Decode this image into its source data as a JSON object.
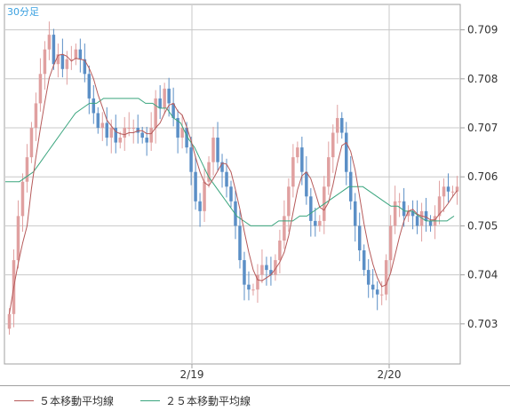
{
  "chart_data": {
    "type": "candlestick",
    "timeframe_label": "30分足",
    "x_tick_labels": [
      "2/19",
      "2/20"
    ],
    "ylim": [
      0.7022,
      0.7095
    ],
    "y_ticks": [
      0.703,
      0.704,
      0.705,
      0.706,
      0.707,
      0.708,
      0.709
    ],
    "y_tick_labels": [
      "0.703",
      "0.704",
      "0.705",
      "0.706",
      "0.707",
      "0.708",
      "0.709"
    ],
    "grid": true,
    "colors": {
      "up": "#e0a0a0",
      "down": "#5b8fc6",
      "ma5": "#b65a5a",
      "ma25": "#3aa57e",
      "grid": "#c8c8c8",
      "frame": "#a0a0a0"
    },
    "closes": [
      0.7032,
      0.7043,
      0.7052,
      0.7059,
      0.7064,
      0.707,
      0.7075,
      0.7081,
      0.7086,
      0.7089,
      0.7083,
      0.7085,
      0.7082,
      0.7084,
      0.7084,
      0.7086,
      0.7084,
      0.7081,
      0.7076,
      0.7073,
      0.707,
      0.7071,
      0.7068,
      0.707,
      0.7067,
      0.7068,
      0.707,
      0.707,
      0.707,
      0.7069,
      0.7068,
      0.7067,
      0.707,
      0.7076,
      0.7074,
      0.7078,
      0.7075,
      0.7072,
      0.7068,
      0.707,
      0.7066,
      0.7061,
      0.7055,
      0.7053,
      0.7059,
      0.7063,
      0.7068,
      0.7063,
      0.7061,
      0.7058,
      0.7055,
      0.705,
      0.7043,
      0.7038,
      0.7037,
      0.7037,
      0.704,
      0.7042,
      0.7041,
      0.704,
      0.7043,
      0.7047,
      0.7052,
      0.7058,
      0.7064,
      0.7066,
      0.7061,
      0.7056,
      0.7051,
      0.705,
      0.7051,
      0.7058,
      0.7064,
      0.7069,
      0.7072,
      0.7069,
      0.7061,
      0.7055,
      0.705,
      0.7045,
      0.7041,
      0.7038,
      0.7037,
      0.7036,
      0.7036,
      0.7043,
      0.705,
      0.7055,
      0.7055,
      0.7052,
      0.7053,
      0.7052,
      0.705,
      0.7053,
      0.7051,
      0.705,
      0.7052,
      0.7056,
      0.7058,
      0.7057,
      0.7057,
      0.7058
    ],
    "ma25": [
      0.7059,
      0.7059,
      0.7059,
      0.706,
      0.7061,
      0.7063,
      0.7065,
      0.7067,
      0.7069,
      0.7071,
      0.7073,
      0.7074,
      0.7075,
      0.7075,
      0.7076,
      0.7076,
      0.7076,
      0.7076,
      0.7076,
      0.7076,
      0.7075,
      0.7075,
      0.7074,
      0.7074,
      0.7072,
      0.7071,
      0.7068,
      0.7066,
      0.7063,
      0.706,
      0.7058,
      0.7056,
      0.7054,
      0.7052,
      0.7051,
      0.705,
      0.705,
      0.705,
      0.705,
      0.7051,
      0.7051,
      0.7051,
      0.7052,
      0.7052,
      0.7053,
      0.7054,
      0.7055,
      0.7056,
      0.7057,
      0.7058,
      0.7058,
      0.7058,
      0.7057,
      0.7056,
      0.7055,
      0.7054,
      0.7054,
      0.7053,
      0.7053,
      0.7052,
      0.7051,
      0.7051,
      0.7051,
      0.7051,
      0.7052
    ]
  },
  "legend": {
    "ma5": "５本移動平均線",
    "ma25": "２５本移動平均線"
  }
}
